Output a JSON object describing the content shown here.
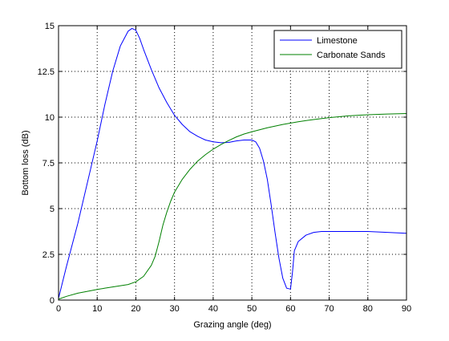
{
  "chart_data": {
    "type": "line",
    "xlabel": "Grazing angle (deg)",
    "ylabel": "Bottom loss (dB)",
    "xlim": [
      0,
      90
    ],
    "ylim": [
      0,
      15
    ],
    "x_ticks": [
      0,
      10,
      20,
      30,
      40,
      50,
      60,
      70,
      80,
      90
    ],
    "x_tick_labels": [
      "0",
      "10",
      "20",
      "30",
      "40",
      "50",
      "60",
      "70",
      "80",
      "90"
    ],
    "y_ticks": [
      0,
      2.5,
      5,
      7.5,
      10,
      12.5,
      15
    ],
    "y_tick_labels": [
      "0",
      "2.5",
      "5",
      "7.5",
      "10",
      "12.5",
      "15"
    ],
    "grid": true,
    "grid_style": "dotted",
    "legend_position": "top-right",
    "series": [
      {
        "name": "Limestone",
        "color": "#0000ff",
        "x": [
          0,
          2,
          5,
          8,
          10,
          12,
          14,
          16,
          18,
          19,
          20,
          21,
          22,
          24,
          26,
          28,
          30,
          32,
          34,
          36,
          38,
          40,
          42,
          44,
          46,
          48,
          50,
          51,
          52,
          53,
          54,
          55,
          56,
          57,
          58,
          59,
          60,
          60.5,
          61,
          62,
          64,
          66,
          68,
          70,
          75,
          80,
          85,
          90
        ],
        "y": [
          0.1,
          1.8,
          4.2,
          6.9,
          8.7,
          10.7,
          12.5,
          13.9,
          14.7,
          14.85,
          14.75,
          14.3,
          13.7,
          12.6,
          11.6,
          10.8,
          10.1,
          9.6,
          9.2,
          8.95,
          8.75,
          8.65,
          8.6,
          8.62,
          8.7,
          8.75,
          8.75,
          8.65,
          8.3,
          7.6,
          6.6,
          5.2,
          3.7,
          2.3,
          1.2,
          0.65,
          0.6,
          1.5,
          2.7,
          3.2,
          3.55,
          3.7,
          3.75,
          3.75,
          3.75,
          3.75,
          3.7,
          3.65
        ]
      },
      {
        "name": "Carbonate Sands",
        "color": "#008000",
        "x": [
          0,
          2,
          5,
          8,
          10,
          12,
          15,
          18,
          20,
          22,
          24,
          25,
          26,
          27,
          28,
          29,
          30,
          32,
          34,
          36,
          38,
          40,
          42,
          44,
          46,
          48,
          50,
          54,
          58,
          62,
          66,
          70,
          75,
          80,
          85,
          90
        ],
        "y": [
          0.05,
          0.2,
          0.38,
          0.5,
          0.58,
          0.65,
          0.75,
          0.85,
          1.0,
          1.3,
          1.9,
          2.4,
          3.2,
          4.1,
          4.8,
          5.4,
          5.9,
          6.6,
          7.15,
          7.6,
          7.95,
          8.25,
          8.5,
          8.72,
          8.92,
          9.08,
          9.2,
          9.42,
          9.6,
          9.75,
          9.87,
          9.97,
          10.07,
          10.13,
          10.17,
          10.2
        ]
      }
    ]
  }
}
